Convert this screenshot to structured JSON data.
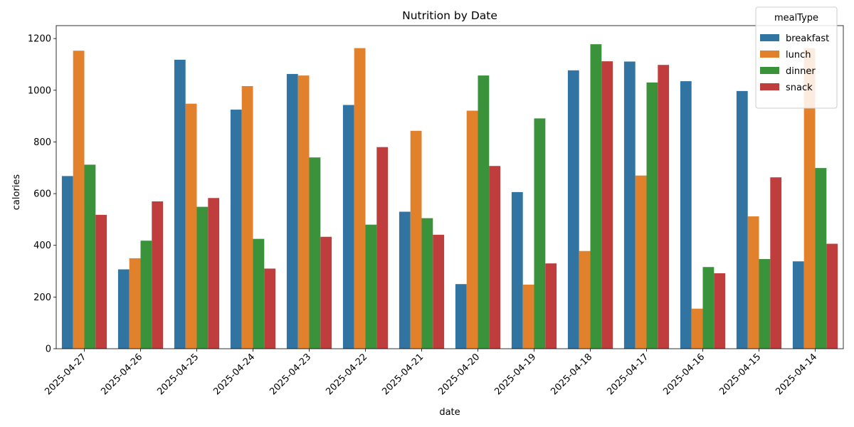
{
  "chart_data": {
    "type": "bar",
    "title": "Nutrition by Date",
    "xlabel": "date",
    "ylabel": "calories",
    "ylim": [
      0,
      1250
    ],
    "yticks": [
      0,
      200,
      400,
      600,
      800,
      1000,
      1200
    ],
    "legend_title": "mealType",
    "legend_position": "top-right",
    "categories": [
      "2025-04-27",
      "2025-04-26",
      "2025-04-25",
      "2025-04-24",
      "2025-04-23",
      "2025-04-22",
      "2025-04-21",
      "2025-04-20",
      "2025-04-19",
      "2025-04-18",
      "2025-04-17",
      "2025-04-16",
      "2025-04-15",
      "2025-04-14"
    ],
    "series": [
      {
        "name": "breakfast",
        "color": "#3274a1",
        "values": [
          668,
          307,
          1118,
          925,
          1063,
          943,
          530,
          250,
          606,
          1077,
          1111,
          1035,
          997,
          338
        ]
      },
      {
        "name": "lunch",
        "color": "#e1812c",
        "values": [
          1153,
          350,
          948,
          1016,
          1057,
          1163,
          843,
          921,
          248,
          378,
          670,
          155,
          512,
          1163
        ]
      },
      {
        "name": "dinner",
        "color": "#3a923a",
        "values": [
          712,
          418,
          549,
          425,
          740,
          480,
          505,
          1057,
          891,
          1178,
          1030,
          316,
          347,
          699
        ]
      },
      {
        "name": "snack",
        "color": "#c03d3e",
        "values": [
          518,
          570,
          583,
          310,
          433,
          780,
          441,
          707,
          330,
          1112,
          1098,
          292,
          663,
          406
        ]
      }
    ]
  }
}
